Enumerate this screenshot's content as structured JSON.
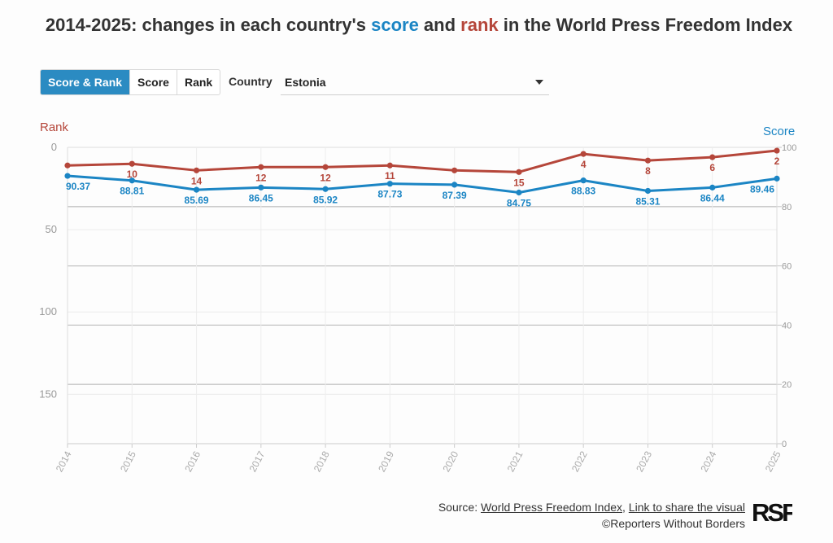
{
  "title": {
    "prefix": "2014-2025: changes in each country's ",
    "score_word": "score",
    "middle": " and ",
    "rank_word": "rank",
    "suffix": " in the World Press Freedom Index"
  },
  "tabs": [
    {
      "label": "Score & Rank",
      "active": true
    },
    {
      "label": "Score",
      "active": false
    },
    {
      "label": "Rank",
      "active": false
    }
  ],
  "country": {
    "label": "Country",
    "selected": "Estonia"
  },
  "colors": {
    "rank": "#b5463a",
    "score": "#1b85c4",
    "tab_active": "#2b8bc2"
  },
  "chart_data": {
    "type": "line",
    "x": [
      2014,
      2015,
      2016,
      2017,
      2018,
      2019,
      2020,
      2021,
      2022,
      2023,
      2024,
      2025
    ],
    "series": [
      {
        "name": "Rank",
        "axis": "left",
        "values": [
          11,
          10,
          14,
          12,
          12,
          11,
          14,
          15,
          4,
          8,
          6,
          2
        ]
      },
      {
        "name": "Score",
        "axis": "right",
        "values": [
          90.37,
          88.81,
          85.69,
          86.45,
          85.92,
          87.73,
          87.39,
          84.75,
          88.83,
          85.31,
          86.44,
          89.46
        ]
      }
    ],
    "left_axis": {
      "title": "Rank",
      "ticks": [
        0,
        50,
        100,
        150
      ],
      "range": [
        0,
        180
      ],
      "reversed": true
    },
    "right_axis": {
      "title": "Score",
      "ticks": [
        0,
        20,
        40,
        60,
        80,
        100
      ],
      "range": [
        0,
        100
      ]
    },
    "rank_labels_shown": [
      "",
      "10",
      "14",
      "12",
      "12",
      "11",
      "",
      "15",
      "4",
      "8",
      "6",
      "2"
    ],
    "score_labels_shown": [
      "90.37",
      "88.81",
      "85.69",
      "86.45",
      "85.92",
      "87.73",
      "87.39",
      "84.75",
      "88.83",
      "85.31",
      "86.44",
      "89.46"
    ]
  },
  "footer": {
    "source_prefix": "Source: ",
    "source_link": "World Press Freedom Index",
    "separator": ", ",
    "share_link": "Link to share the visual",
    "copyright": "©Reporters Without Borders"
  },
  "logo_text": "RSF"
}
